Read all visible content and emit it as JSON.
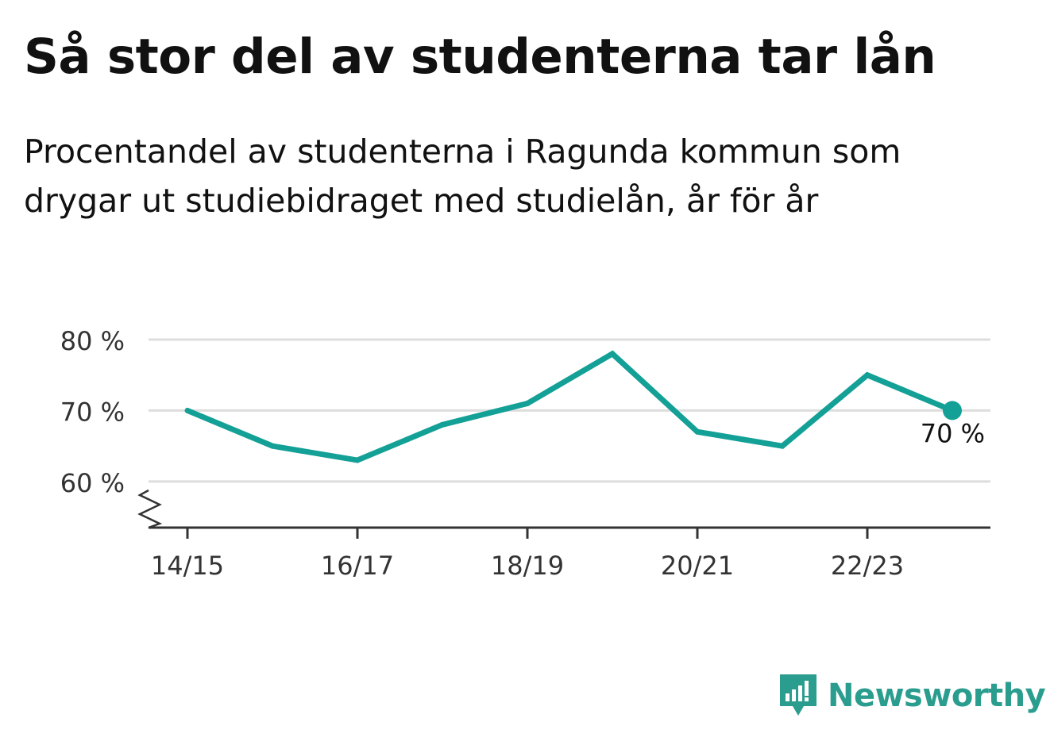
{
  "header": {
    "title": "Så stor del av studenterna tar lån",
    "subtitle_line1": "Procentandel av studenterna i Ragunda kommun som",
    "subtitle_line2": "drygar ut studiebidraget med studielån, år för år"
  },
  "brand": {
    "name": "Newsworthy",
    "color": "#2a9d8f",
    "icon": "newsworthy-logo-icon"
  },
  "colors": {
    "line": "#13a096",
    "grid": "#dddddd",
    "axis": "#333333",
    "tick_text": "#333333"
  },
  "chart_data": {
    "type": "line",
    "title": "Så stor del av studenterna tar lån",
    "subtitle": "Procentandel av studenterna i Ragunda kommun som drygar ut studiebidraget med studielån, år för år",
    "x": [
      "14/15",
      "15/16",
      "16/17",
      "17/18",
      "18/19",
      "19/20",
      "20/21",
      "21/22",
      "22/23",
      "23/24"
    ],
    "x_tick_labels": [
      "14/15",
      "16/17",
      "18/19",
      "20/21",
      "22/23"
    ],
    "series": [
      {
        "values": [
          70,
          65,
          63,
          68,
          71,
          78,
          67,
          65,
          75,
          70
        ]
      }
    ],
    "ylim": [
      53.5,
      80
    ],
    "y_ticks": [
      60,
      70,
      80
    ],
    "y_tick_labels": [
      "60 %",
      "70 %",
      "80 %"
    ],
    "axis_break": true,
    "grid": true,
    "end_label": "70 %"
  }
}
